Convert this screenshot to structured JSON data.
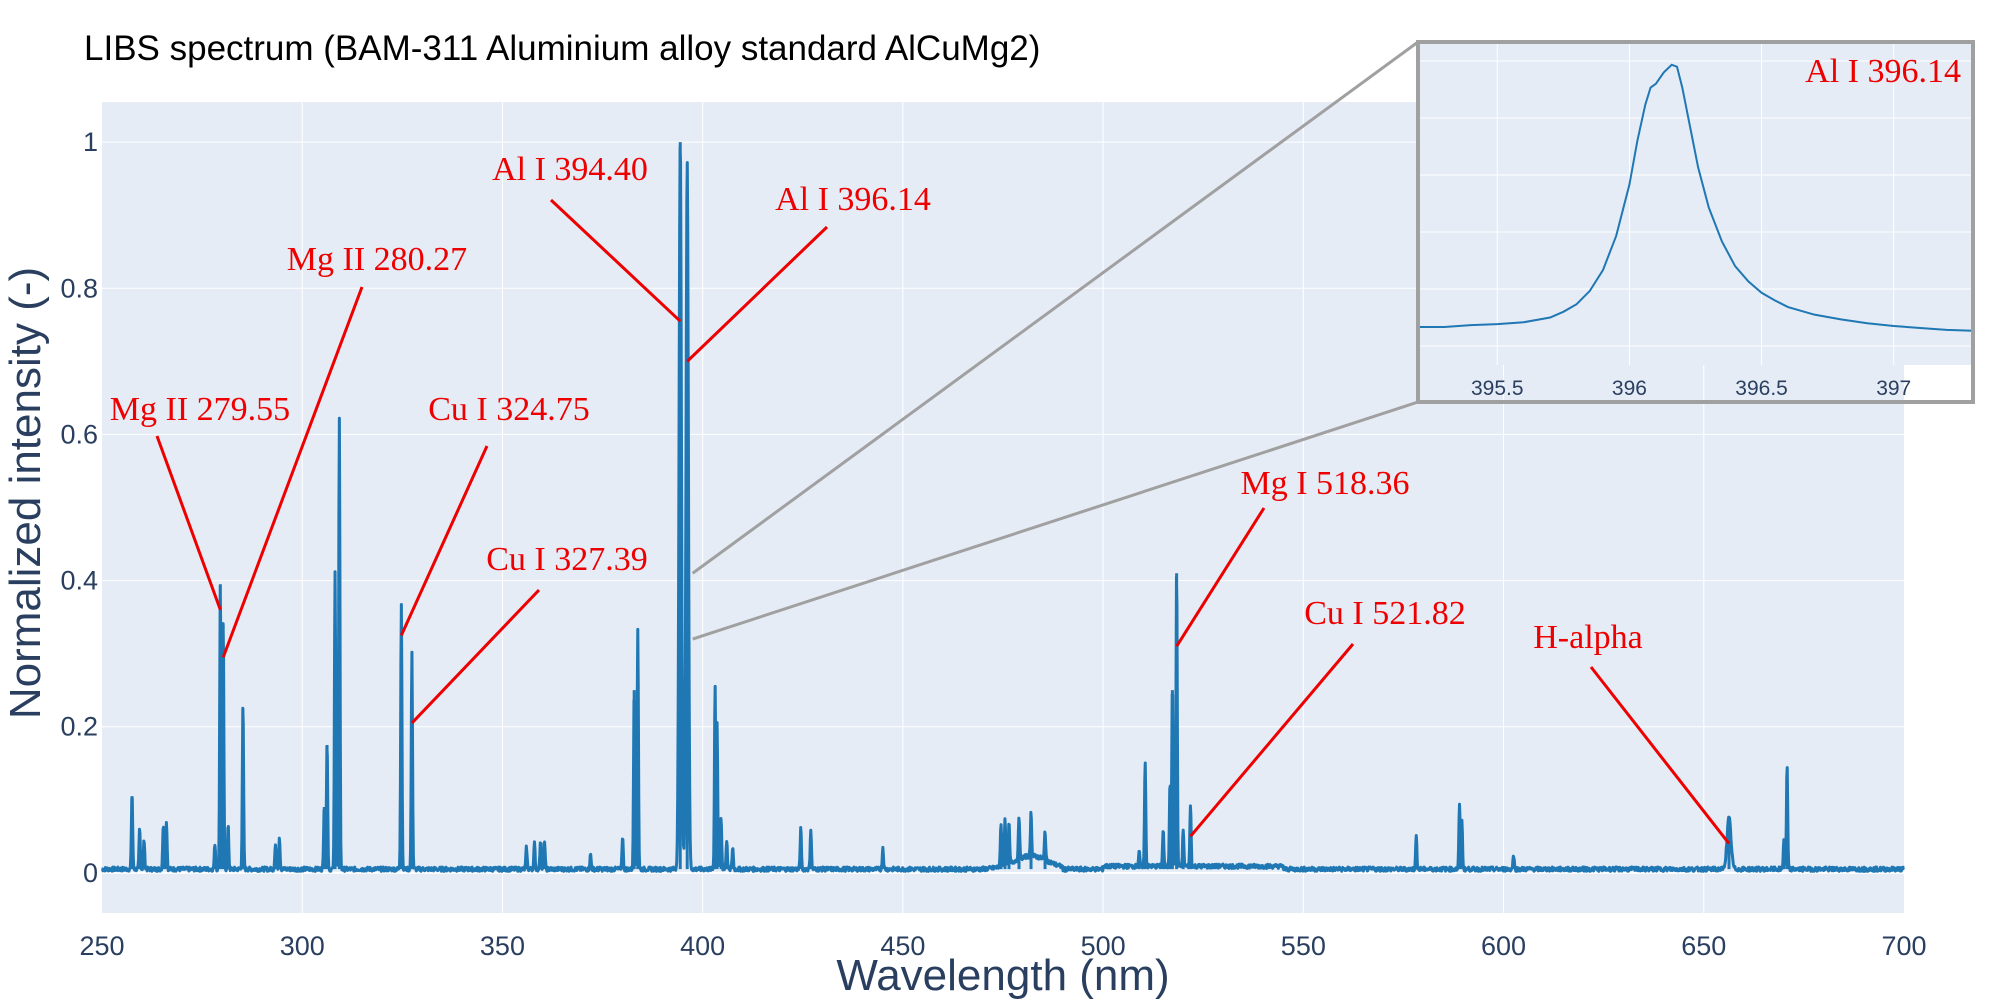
{
  "colors": {
    "plot_bg": "#e5ecf6",
    "grid": "#ffffff",
    "line": "#1f77b4",
    "annotation": "#ee0000",
    "connector": "#a0a0a0",
    "inset_border": "#a0a0a0",
    "axis_text": "#2a3f5f"
  },
  "chart_data": [
    {
      "type": "line",
      "title": "LIBS spectrum (BAM-311 Aluminium alloy standard AlCuMg2)",
      "xlabel": "Wavelength (nm)",
      "ylabel": "Normalized intensity (-)",
      "xlim": [
        250,
        700
      ],
      "ylim": [
        -0.055,
        1.055
      ],
      "xticks": [
        250,
        300,
        350,
        400,
        450,
        500,
        550,
        600,
        650,
        700
      ],
      "yticks": [
        0,
        0.2,
        0.4,
        0.6,
        0.8,
        1
      ],
      "grid": true,
      "baseline": 0.005,
      "peaks": [
        {
          "x": 257.5,
          "y": 0.105
        },
        {
          "x": 259.4,
          "y": 0.055
        },
        {
          "x": 260.5,
          "y": 0.04
        },
        {
          "x": 265.3,
          "y": 0.06
        },
        {
          "x": 266.1,
          "y": 0.065
        },
        {
          "x": 278.2,
          "y": 0.035
        },
        {
          "x": 279.55,
          "y": 0.395
        },
        {
          "x": 280.27,
          "y": 0.34
        },
        {
          "x": 281.5,
          "y": 0.06
        },
        {
          "x": 285.2,
          "y": 0.225
        },
        {
          "x": 293.3,
          "y": 0.035
        },
        {
          "x": 294.3,
          "y": 0.045
        },
        {
          "x": 305.5,
          "y": 0.09
        },
        {
          "x": 306.2,
          "y": 0.175
        },
        {
          "x": 308.2,
          "y": 0.41
        },
        {
          "x": 309.27,
          "y": 0.62
        },
        {
          "x": 324.75,
          "y": 0.365
        },
        {
          "x": 327.39,
          "y": 0.295
        },
        {
          "x": 356.0,
          "y": 0.03
        },
        {
          "x": 358.0,
          "y": 0.035
        },
        {
          "x": 359.5,
          "y": 0.04
        },
        {
          "x": 360.5,
          "y": 0.04
        },
        {
          "x": 372.0,
          "y": 0.02
        },
        {
          "x": 380.0,
          "y": 0.045
        },
        {
          "x": 382.9,
          "y": 0.25
        },
        {
          "x": 383.8,
          "y": 0.33
        },
        {
          "x": 394.4,
          "y": 1.0
        },
        {
          "x": 396.14,
          "y": 0.97
        },
        {
          "x": 403.1,
          "y": 0.25
        },
        {
          "x": 403.6,
          "y": 0.2
        },
        {
          "x": 404.6,
          "y": 0.07
        },
        {
          "x": 406.0,
          "y": 0.04
        },
        {
          "x": 407.5,
          "y": 0.03
        },
        {
          "x": 424.5,
          "y": 0.055
        },
        {
          "x": 427.0,
          "y": 0.055
        },
        {
          "x": 445.0,
          "y": 0.03
        },
        {
          "x": 474.5,
          "y": 0.06
        },
        {
          "x": 475.5,
          "y": 0.065
        },
        {
          "x": 476.5,
          "y": 0.055
        },
        {
          "x": 479.0,
          "y": 0.06
        },
        {
          "x": 482.0,
          "y": 0.06
        },
        {
          "x": 485.5,
          "y": 0.04
        },
        {
          "x": 509.0,
          "y": 0.02
        },
        {
          "x": 510.5,
          "y": 0.145
        },
        {
          "x": 515.0,
          "y": 0.05
        },
        {
          "x": 516.7,
          "y": 0.115
        },
        {
          "x": 517.3,
          "y": 0.25
        },
        {
          "x": 518.36,
          "y": 0.41
        },
        {
          "x": 520.0,
          "y": 0.05
        },
        {
          "x": 521.82,
          "y": 0.085
        },
        {
          "x": 578.2,
          "y": 0.045
        },
        {
          "x": 589.0,
          "y": 0.09
        },
        {
          "x": 589.6,
          "y": 0.065
        },
        {
          "x": 602.5,
          "y": 0.02
        },
        {
          "x": 656.3,
          "y": 0.07
        },
        {
          "x": 670.0,
          "y": 0.04
        },
        {
          "x": 670.8,
          "y": 0.142
        }
      ],
      "annotations": [
        {
          "text": "Mg II 279.55",
          "x": 279.55,
          "y": 0.36
        },
        {
          "text": "Mg II 280.27",
          "x": 280.27,
          "y": 0.295
        },
        {
          "text": "Cu I 324.75",
          "x": 324.75,
          "y": 0.325
        },
        {
          "text": "Cu I 327.39",
          "x": 327.39,
          "y": 0.205
        },
        {
          "text": "Al I 394.40",
          "x": 394.4,
          "y": 0.755
        },
        {
          "text": "Al I 396.14",
          "x": 396.14,
          "y": 0.7
        },
        {
          "text": "Mg I 518.36",
          "x": 518.36,
          "y": 0.31
        },
        {
          "text": "Cu I 521.82",
          "x": 521.82,
          "y": 0.05
        },
        {
          "text": "H-alpha",
          "x": 656.3,
          "y": 0.04
        }
      ]
    },
    {
      "type": "line",
      "title": "",
      "xlim": [
        395.2,
        397.3
      ],
      "xticks": [
        395.5,
        396,
        396.5,
        397
      ],
      "xtick_labels": [
        "395.5",
        "396",
        "396.5",
        "397"
      ],
      "ylim": [
        -0.01,
        0.16
      ],
      "grid": true,
      "x": [
        395.2,
        395.3,
        395.4,
        395.5,
        395.6,
        395.7,
        395.75,
        395.8,
        395.85,
        395.9,
        395.95,
        396.0,
        396.03,
        396.06,
        396.08,
        396.1,
        396.13,
        396.16,
        396.18,
        396.2,
        396.23,
        396.26,
        396.3,
        396.35,
        396.4,
        396.45,
        396.5,
        396.55,
        396.6,
        396.7,
        396.8,
        396.9,
        397.0,
        397.1,
        397.2,
        397.3
      ],
      "y": [
        0.01,
        0.01,
        0.011,
        0.0115,
        0.0125,
        0.015,
        0.018,
        0.022,
        0.029,
        0.04,
        0.058,
        0.085,
        0.108,
        0.127,
        0.136,
        0.138,
        0.144,
        0.148,
        0.147,
        0.136,
        0.115,
        0.094,
        0.073,
        0.055,
        0.042,
        0.034,
        0.028,
        0.024,
        0.0205,
        0.0165,
        0.014,
        0.012,
        0.0105,
        0.0095,
        0.0085,
        0.008
      ],
      "annotations": [
        {
          "text": "Al I 396.14"
        }
      ]
    }
  ]
}
